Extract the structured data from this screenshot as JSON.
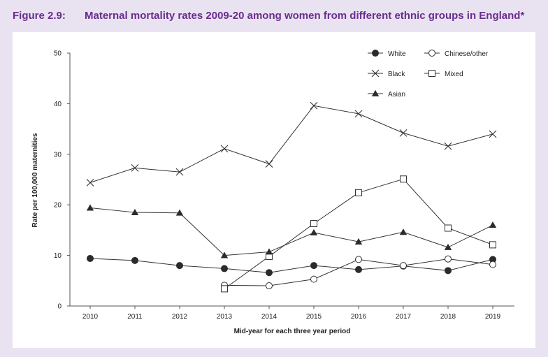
{
  "figure": {
    "number": "Figure 2.9:",
    "title": "Maternal mortality rates 2009-20 among women from different ethnic groups in England*"
  },
  "chart_data": {
    "type": "line",
    "title": "Maternal mortality rates 2009-20 among women from different ethnic groups in England*",
    "xlabel": "Mid-year for each three year period",
    "ylabel": "Rate per 100,000 maternities",
    "ylim": [
      0,
      50
    ],
    "yticks": [
      0,
      10,
      20,
      30,
      40,
      50
    ],
    "categories": [
      "2010",
      "2011",
      "2012",
      "2013",
      "2014",
      "2015",
      "2016",
      "2017",
      "2018",
      "2019"
    ],
    "grid": false,
    "legend_position": "top-right",
    "series": [
      {
        "name": "White",
        "marker": "filled-circle",
        "values": [
          9.4,
          9.0,
          8.0,
          7.4,
          6.6,
          8.0,
          7.2,
          7.9,
          7.0,
          9.2
        ]
      },
      {
        "name": "Chinese/other",
        "marker": "open-circle",
        "values": [
          null,
          null,
          null,
          4.1,
          4.0,
          5.3,
          9.2,
          8.0,
          9.3,
          8.2
        ]
      },
      {
        "name": "Black",
        "marker": "cross",
        "values": [
          24.4,
          27.3,
          26.5,
          31.1,
          28.1,
          39.6,
          38.0,
          34.2,
          31.6,
          34.0
        ]
      },
      {
        "name": "Mixed",
        "marker": "open-square",
        "values": [
          null,
          null,
          null,
          3.4,
          9.8,
          16.3,
          22.4,
          25.1,
          15.4,
          12.1
        ]
      },
      {
        "name": "Asian",
        "marker": "filled-triangle",
        "values": [
          19.4,
          18.5,
          18.4,
          10.0,
          10.7,
          14.5,
          12.7,
          14.6,
          11.6,
          16.0
        ]
      }
    ]
  }
}
